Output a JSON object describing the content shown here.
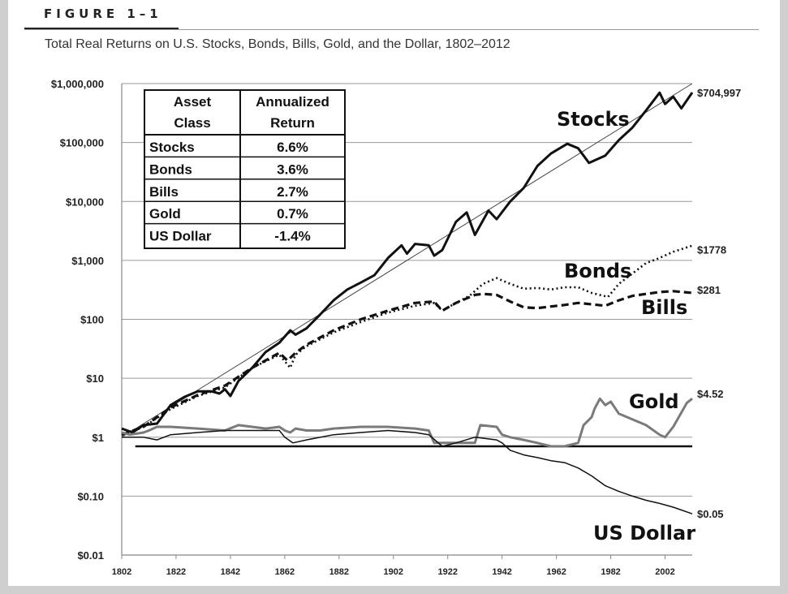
{
  "figure": {
    "label": "FIGURE 1–1",
    "title": "Total Real Returns on U.S. Stocks, Bonds, Bills, Gold, and the Dollar, 1802–2012"
  },
  "chart_data": {
    "type": "line",
    "title": "Total Real Returns on U.S. Stocks, Bonds, Bills, Gold, and the Dollar, 1802–2012",
    "xlabel": "",
    "ylabel": "",
    "y_scale": "log",
    "ylim": [
      0.01,
      1000000
    ],
    "xlim": [
      1802,
      2012
    ],
    "x_ticks": [
      "1802",
      "1822",
      "1842",
      "1862",
      "1882",
      "1902",
      "1922",
      "1942",
      "1962",
      "1982",
      "2002"
    ],
    "x_tick_values": [
      1802,
      1822,
      1842,
      1862,
      1882,
      1902,
      1922,
      1942,
      1962,
      1982,
      2002
    ],
    "y_ticks": [
      "$1,000,000",
      "$100,000",
      "$10,000",
      "$1,000",
      "$100",
      "$10",
      "$1",
      "$0.10",
      "$0.01"
    ],
    "y_tick_values": [
      1000000,
      100000,
      10000,
      1000,
      100,
      10,
      1,
      0.1,
      0.01
    ],
    "grid": true,
    "legend": "none",
    "series": [
      {
        "name": "Stocks",
        "style": "solid-thick",
        "color": "#111111",
        "end_label": "$704,997",
        "x": [
          1802,
          1806,
          1810,
          1815,
          1820,
          1825,
          1830,
          1835,
          1838,
          1840,
          1842,
          1845,
          1850,
          1855,
          1860,
          1864,
          1866,
          1870,
          1875,
          1880,
          1885,
          1890,
          1895,
          1900,
          1905,
          1907,
          1910,
          1915,
          1917,
          1920,
          1925,
          1929,
          1932,
          1937,
          1940,
          1945,
          1950,
          1955,
          1960,
          1966,
          1970,
          1974,
          1980,
          1985,
          1990,
          1995,
          2000,
          2002,
          2005,
          2008,
          2012
        ],
        "y": [
          1.4,
          1.2,
          1.6,
          1.7,
          3.5,
          4.8,
          6,
          6,
          5.5,
          6.5,
          5,
          9,
          15,
          28,
          40,
          65,
          55,
          70,
          120,
          210,
          320,
          420,
          560,
          1100,
          1800,
          1300,
          1900,
          1800,
          1200,
          1500,
          4500,
          6500,
          2700,
          7000,
          5000,
          10000,
          17000,
          40000,
          65000,
          95000,
          80000,
          45000,
          60000,
          110000,
          180000,
          350000,
          700000,
          450000,
          600000,
          380000,
          704997
        ]
      },
      {
        "name": "Bonds",
        "style": "dotted",
        "color": "#111111",
        "end_label": "$1778",
        "x": [
          1802,
          1810,
          1820,
          1830,
          1840,
          1850,
          1860,
          1864,
          1866,
          1870,
          1880,
          1890,
          1900,
          1910,
          1917,
          1920,
          1925,
          1930,
          1935,
          1940,
          1945,
          1950,
          1955,
          1960,
          1965,
          1970,
          1975,
          1981,
          1985,
          1990,
          1995,
          2000,
          2005,
          2012
        ],
        "y": [
          1.1,
          1.5,
          3,
          5,
          7,
          15,
          25,
          15,
          25,
          35,
          60,
          90,
          130,
          170,
          190,
          140,
          190,
          250,
          400,
          500,
          400,
          330,
          340,
          320,
          350,
          350,
          280,
          240,
          400,
          600,
          900,
          1100,
          1400,
          1778
        ]
      },
      {
        "name": "Bills",
        "style": "dashed-thick",
        "color": "#111111",
        "end_label": "$281",
        "x": [
          1802,
          1810,
          1820,
          1830,
          1840,
          1850,
          1860,
          1863,
          1866,
          1870,
          1880,
          1890,
          1900,
          1910,
          1917,
          1920,
          1925,
          1932,
          1935,
          1940,
          1945,
          1950,
          1955,
          1960,
          1965,
          1970,
          1975,
          1980,
          1985,
          1990,
          1995,
          2000,
          2005,
          2012
        ],
        "y": [
          1.1,
          1.5,
          3.2,
          5.2,
          7.5,
          15,
          27,
          20,
          27,
          37,
          65,
          100,
          140,
          190,
          200,
          140,
          190,
          260,
          270,
          260,
          200,
          160,
          155,
          165,
          175,
          190,
          180,
          170,
          210,
          250,
          270,
          290,
          300,
          281
        ]
      },
      {
        "name": "Gold",
        "style": "solid-gray",
        "color": "#7a7a7a",
        "end_label": "$4.52",
        "x": [
          1802,
          1805,
          1810,
          1812,
          1815,
          1820,
          1830,
          1840,
          1845,
          1850,
          1855,
          1860,
          1862,
          1864,
          1866,
          1870,
          1875,
          1880,
          1890,
          1900,
          1910,
          1915,
          1917,
          1920,
          1925,
          1932,
          1934,
          1940,
          1942,
          1945,
          1950,
          1955,
          1960,
          1965,
          1970,
          1972,
          1975,
          1976,
          1978,
          1980,
          1982,
          1985,
          1990,
          1995,
          2000,
          2002,
          2005,
          2010,
          2012
        ],
        "y": [
          1.2,
          1.1,
          1.2,
          1.3,
          1.5,
          1.5,
          1.4,
          1.3,
          1.6,
          1.5,
          1.4,
          1.5,
          1.3,
          1.2,
          1.4,
          1.3,
          1.3,
          1.4,
          1.5,
          1.5,
          1.4,
          1.3,
          0.8,
          0.8,
          0.8,
          0.8,
          1.6,
          1.5,
          1.1,
          1.0,
          0.9,
          0.8,
          0.7,
          0.7,
          0.8,
          1.6,
          2.2,
          3.0,
          4.5,
          3.5,
          4.0,
          2.5,
          2.0,
          1.6,
          1.1,
          1.0,
          1.5,
          3.8,
          4.52
        ]
      },
      {
        "name": "US Dollar",
        "style": "solid-thin",
        "color": "#111111",
        "end_label": "$0.05",
        "x": [
          1802,
          1810,
          1815,
          1820,
          1830,
          1840,
          1850,
          1860,
          1862,
          1865,
          1870,
          1880,
          1890,
          1900,
          1910,
          1915,
          1920,
          1925,
          1932,
          1940,
          1942,
          1945,
          1950,
          1955,
          1960,
          1965,
          1970,
          1975,
          1980,
          1985,
          1990,
          1995,
          2000,
          2005,
          2012
        ],
        "y": [
          1.0,
          1.0,
          0.9,
          1.1,
          1.2,
          1.3,
          1.3,
          1.3,
          1.0,
          0.8,
          0.9,
          1.1,
          1.2,
          1.3,
          1.2,
          1.1,
          0.7,
          0.8,
          1.0,
          0.9,
          0.8,
          0.6,
          0.5,
          0.45,
          0.4,
          0.37,
          0.3,
          0.22,
          0.15,
          0.12,
          0.1,
          0.085,
          0.075,
          0.065,
          0.05
        ]
      }
    ],
    "reference_line": {
      "value": 0.7,
      "style": "solid-thick"
    },
    "series_labels": [
      "Stocks",
      "Bonds",
      "Bills",
      "Gold",
      "US Dollar"
    ],
    "table": {
      "headers": [
        [
          "Asset",
          "Class"
        ],
        [
          "Annualized",
          "Return"
        ]
      ],
      "rows": [
        [
          "Stocks",
          "6.6%"
        ],
        [
          "Bonds",
          "3.6%"
        ],
        [
          "Bills",
          "2.7%"
        ],
        [
          "Gold",
          "0.7%"
        ],
        [
          "US Dollar",
          "-1.4%"
        ]
      ]
    }
  }
}
